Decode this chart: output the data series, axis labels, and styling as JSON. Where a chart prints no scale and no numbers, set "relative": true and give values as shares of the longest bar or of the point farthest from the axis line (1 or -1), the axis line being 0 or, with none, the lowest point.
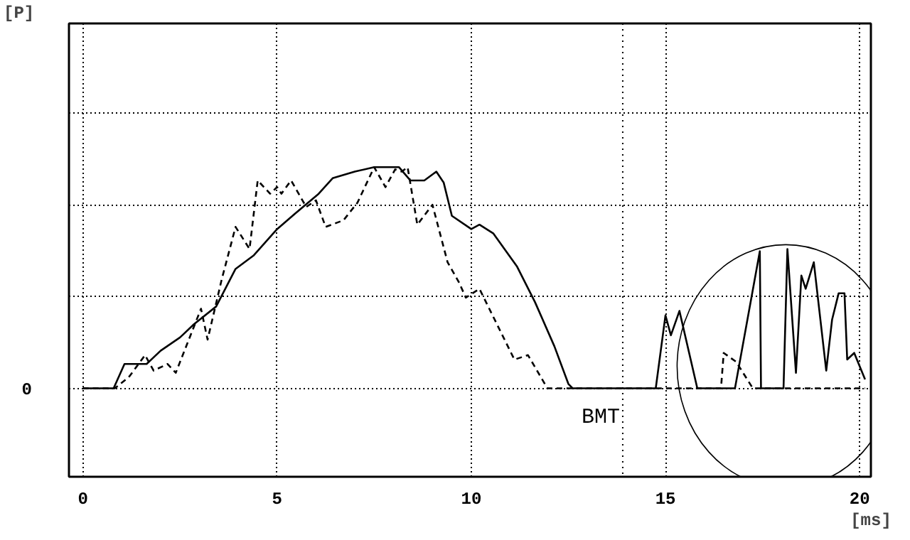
{
  "chart_data": {
    "type": "line",
    "relative": true,
    "xlabel": "[ms]",
    "xlim": [
      -0.36,
      20.29
    ],
    "xticks": [
      0,
      5,
      10,
      15,
      20
    ],
    "annotations": [
      "0",
      "[P]"
    ],
    "grid": true,
    "series": [
      {
        "color": "#000000",
        "line_style": "solid",
        "x": [
          0,
          0.79,
          1.07,
          1.64,
          2.0,
          2.5,
          2.86,
          3.43,
          3.93,
          4.39,
          5.0,
          5.46,
          6.07,
          6.43,
          7.0,
          7.5,
          8.14,
          8.43,
          8.79,
          9.1,
          9.29,
          9.5,
          10.0,
          10.21,
          10.57,
          11.18,
          11.64,
          12.14,
          12.5,
          12.61,
          14.75,
          15.0,
          15.14,
          15.36,
          15.82,
          16.79,
          17.43,
          17.46,
          18.04,
          18.14,
          18.36,
          18.5,
          18.61,
          18.82,
          19.14,
          19.29,
          19.46,
          19.61,
          19.68,
          19.86,
          20.14
        ],
        "values": [
          0,
          0,
          0.11,
          0.11,
          0.17,
          0.23,
          0.29,
          0.37,
          0.54,
          0.6,
          0.72,
          0.79,
          0.88,
          0.95,
          0.98,
          1.0,
          1.0,
          0.94,
          0.94,
          0.98,
          0.93,
          0.78,
          0.72,
          0.74,
          0.7,
          0.55,
          0.39,
          0.19,
          0.02,
          0,
          0,
          0.33,
          0.24,
          0.35,
          0,
          0,
          0.62,
          0,
          0,
          0.63,
          0.07,
          0.51,
          0.45,
          0.57,
          0.08,
          0.31,
          0.43,
          0.43,
          0.13,
          0.16,
          0.04
        ]
      },
      {
        "color": "#000000",
        "line_style": "dashed",
        "x": [
          0,
          0.82,
          1.18,
          1.6,
          1.82,
          2.18,
          2.39,
          3.04,
          3.21,
          3.57,
          3.93,
          4.29,
          4.5,
          4.82,
          5.0,
          5.11,
          5.36,
          5.75,
          6.0,
          6.25,
          6.71,
          7.07,
          7.5,
          7.79,
          8.04,
          8.21,
          8.36,
          8.61,
          9.0,
          9.39,
          9.68,
          9.86,
          10.21,
          11.11,
          11.46,
          11.96,
          16.43,
          16.5,
          16.82,
          17.25,
          20.14
        ],
        "values": [
          0,
          0,
          0.05,
          0.15,
          0.08,
          0.11,
          0.07,
          0.36,
          0.22,
          0.49,
          0.73,
          0.63,
          0.94,
          0.88,
          0.91,
          0.88,
          0.94,
          0.82,
          0.85,
          0.73,
          0.76,
          0.84,
          1.0,
          0.91,
          0.99,
          0.98,
          1.0,
          0.74,
          0.83,
          0.57,
          0.48,
          0.41,
          0.45,
          0.13,
          0.15,
          0,
          0,
          0.16,
          0.12,
          0,
          0
        ]
      }
    ],
    "ref_lines": [
      {
        "axis": "x",
        "value": 13.9,
        "label": "BMT",
        "line_style": "dotted"
      }
    ]
  }
}
